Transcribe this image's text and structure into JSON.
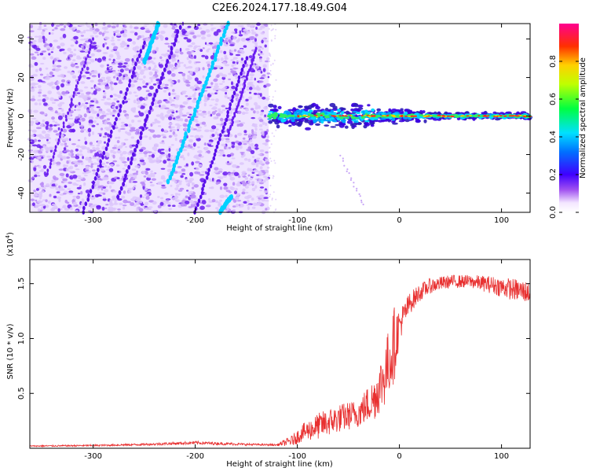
{
  "title": "C2E6.2024.177.18.49.G04",
  "colors": {
    "spectrogram_bg": "#b98af7",
    "track_purple": "#6a1cf0",
    "snr_line": "#e83030"
  },
  "chart_data": [
    {
      "type": "heatmap",
      "xlabel": "Height of straight line (km)",
      "ylabel": "Frequency (Hz)",
      "xlim": [
        -362,
        128
      ],
      "ylim": [
        -50,
        48
      ],
      "xticks": [
        -300,
        -200,
        -100,
        0,
        100
      ],
      "yticks": [
        -40,
        -20,
        0,
        20,
        40
      ],
      "grid": false,
      "noisy_region_x": [
        -362,
        -128
      ],
      "carrier_frequency_hz": 0,
      "carrier_x_range": [
        -128,
        128
      ],
      "colorbar": {
        "label": "Normalized spectral amplitude",
        "range": [
          0,
          1
        ],
        "ticks": [
          0.0,
          0.2,
          0.4,
          0.6,
          0.8
        ]
      }
    },
    {
      "type": "line",
      "xlabel": "Height of straight line (km)",
      "ylabel": "SNR (10 * v/v)",
      "y_multiplier_label": "(x10",
      "y_multiplier_exp": "4",
      "y_multiplier_close": ")",
      "xlim": [
        -362,
        128
      ],
      "ylim": [
        0,
        1.72
      ],
      "xticks": [
        -300,
        -200,
        -100,
        0,
        100
      ],
      "yticks": [
        0.5,
        1.0,
        1.5
      ],
      "ytick_labels": [
        "0.5",
        "1.0",
        "1.5"
      ],
      "grid": false,
      "series": [
        {
          "x": [
            -362,
            -300,
            -250,
            -200,
            -150,
            -120,
            -105,
            -95,
            -80,
            -60,
            -40,
            -25,
            -15,
            -5,
            0,
            10,
            20,
            30,
            50,
            70,
            90,
            110,
            128
          ],
          "mean": [
            0.02,
            0.025,
            0.035,
            0.05,
            0.035,
            0.03,
            0.07,
            0.14,
            0.2,
            0.27,
            0.32,
            0.45,
            0.65,
            0.95,
            1.12,
            1.32,
            1.42,
            1.48,
            1.52,
            1.52,
            1.49,
            1.45,
            1.42
          ],
          "noise": [
            0.006,
            0.008,
            0.01,
            0.015,
            0.01,
            0.008,
            0.05,
            0.08,
            0.12,
            0.13,
            0.13,
            0.2,
            0.28,
            0.35,
            0.15,
            0.1,
            0.08,
            0.07,
            0.06,
            0.06,
            0.08,
            0.1,
            0.1
          ]
        }
      ]
    }
  ]
}
